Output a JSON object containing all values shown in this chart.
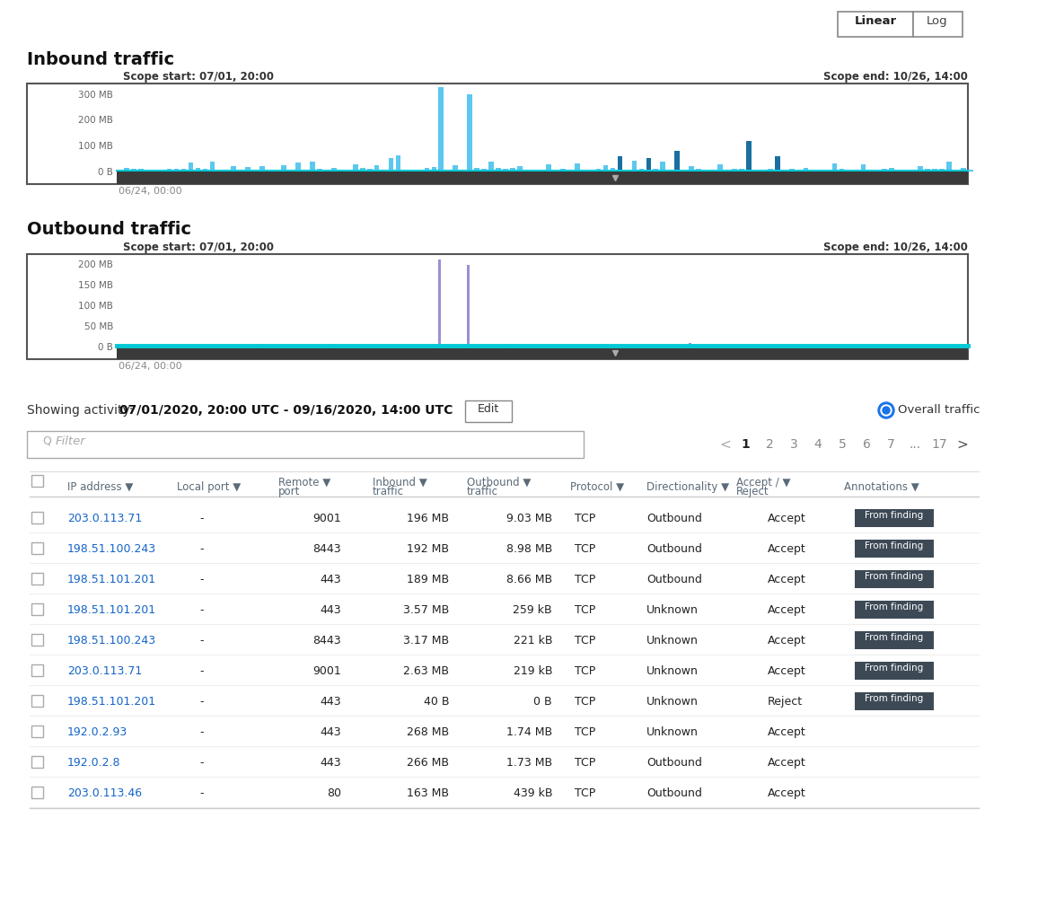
{
  "bg_color": "#ffffff",
  "title_inbound": "Inbound traffic",
  "title_outbound": "Outbound traffic",
  "scope_start": "Scope start: 07/01, 20:00",
  "scope_end": "Scope end: 10/26, 14:00",
  "x_label": "06/24, 00:00",
  "inbound_yticks": [
    "0 B",
    "100 MB",
    "200 MB",
    "300 MB"
  ],
  "outbound_yticks": [
    "0 B",
    "50 MB",
    "100 MB",
    "150 MB",
    "200 MB"
  ],
  "showing_text": "Showing activity:",
  "showing_date": "07/01/2020, 20:00 UTC - 09/16/2020, 14:00 UTC",
  "edit_button": "Edit",
  "overall_traffic": "Overall traffic",
  "filter_placeholder": "Filter",
  "pagination": [
    "1",
    "2",
    "3",
    "4",
    "5",
    "6",
    "7",
    "...",
    "17"
  ],
  "table_headers": [
    "IP address",
    "Local port",
    "Remote\nport",
    "Inbound\ntraffic",
    "Outbound\ntraffic",
    "Protocol",
    "Directionality",
    "Accept /\nReject",
    "Annotations"
  ],
  "table_rows": [
    [
      "203.0.113.71",
      "-",
      "9001",
      "196 MB",
      "9.03 MB",
      "TCP",
      "Outbound",
      "Accept",
      "From finding"
    ],
    [
      "198.51.100.243",
      "-",
      "8443",
      "192 MB",
      "8.98 MB",
      "TCP",
      "Outbound",
      "Accept",
      "From finding"
    ],
    [
      "198.51.101.201",
      "-",
      "443",
      "189 MB",
      "8.66 MB",
      "TCP",
      "Outbound",
      "Accept",
      "From finding"
    ],
    [
      "198.51.101.201",
      "-",
      "443",
      "3.57 MB",
      "259 kB",
      "TCP",
      "Unknown",
      "Accept",
      "From finding"
    ],
    [
      "198.51.100.243",
      "-",
      "8443",
      "3.17 MB",
      "221 kB",
      "TCP",
      "Unknown",
      "Accept",
      "From finding"
    ],
    [
      "203.0.113.71",
      "-",
      "9001",
      "2.63 MB",
      "219 kB",
      "TCP",
      "Unknown",
      "Accept",
      "From finding"
    ],
    [
      "198.51.101.201",
      "-",
      "443",
      "40 B",
      "0 B",
      "TCP",
      "Unknown",
      "Reject",
      "From finding"
    ],
    [
      "192.0.2.93",
      "-",
      "443",
      "268 MB",
      "1.74 MB",
      "TCP",
      "Unknown",
      "Accept",
      ""
    ],
    [
      "192.0.2.8",
      "-",
      "443",
      "266 MB",
      "1.73 MB",
      "TCP",
      "Outbound",
      "Accept",
      ""
    ],
    [
      "203.0.113.46",
      "-",
      "80",
      "163 MB",
      "439 kB",
      "TCP",
      "Outbound",
      "Accept",
      ""
    ]
  ],
  "link_color": "#1464c8",
  "header_color": "#5a6a78",
  "row_text_color": "#222222",
  "annotation_bg": "#3d4a56",
  "annotation_text": "#ffffff",
  "inbound_bar_color": "#5bc8f0",
  "inbound_bar_dark": "#1a6fa0",
  "outbound_bar_color": "#9b8fd4",
  "outbound_line_color": "#00c8d4",
  "chart_bg": "#f5f5f5",
  "chart_border": "#444444",
  "grid_color": "#dddddd",
  "nav_bar_color": "#3a3a3a"
}
